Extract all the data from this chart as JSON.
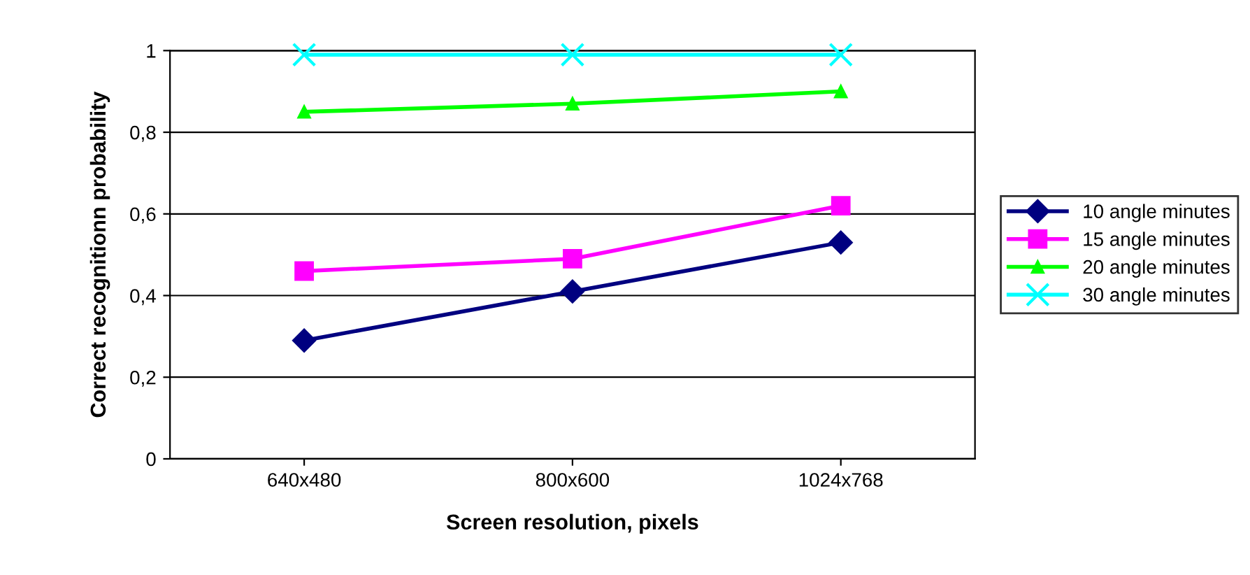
{
  "chart_data": {
    "type": "line",
    "xlabel": "Screen resolution, pixels",
    "ylabel": "Correct recognitionn probability",
    "categories": [
      "640x480",
      "800x600",
      "1024x768"
    ],
    "series": [
      {
        "name": "10 angle minutes",
        "color": "#000080",
        "values": [
          0.29,
          0.41,
          0.53
        ],
        "marker": "diamond"
      },
      {
        "name": "15 angle minutes",
        "color": "#ff00ff",
        "values": [
          0.46,
          0.49,
          0.62
        ],
        "marker": "square"
      },
      {
        "name": "20 angle minutes",
        "color": "#00ff00",
        "values": [
          0.85,
          0.87,
          0.9
        ],
        "marker": "triangle"
      },
      {
        "name": "30 angle minutes",
        "color": "#00ffff",
        "values": [
          0.99,
          0.99,
          0.99
        ],
        "marker": "cross"
      }
    ],
    "ylim": [
      0,
      1
    ],
    "yticks": [
      0,
      {
        "value": 0.2,
        "label": "0,2"
      },
      {
        "value": 0.4,
        "label": "0,4"
      },
      {
        "value": 0.6,
        "label": "0,6"
      },
      {
        "value": 0.8,
        "label": "0,8"
      },
      1
    ],
    "grid": "y",
    "legend": "right",
    "line_style": "solid"
  }
}
